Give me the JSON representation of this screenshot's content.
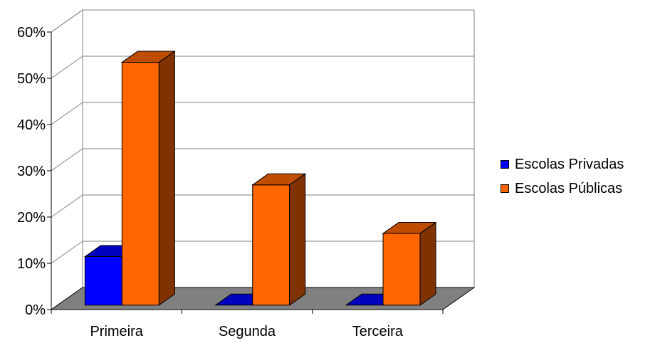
{
  "chart_data": {
    "type": "bar",
    "categories": [
      "Primeira",
      "Segunda",
      "Terceira"
    ],
    "series": [
      {
        "name": "Escolas Privadas",
        "values": [
          10.5,
          0,
          0
        ],
        "color": "#0000ff"
      },
      {
        "name": "Escolas Públicas",
        "values": [
          52.5,
          26,
          15.5
        ],
        "color": "#ff6600"
      }
    ],
    "y_ticks": [
      "0%",
      "10%",
      "20%",
      "30%",
      "40%",
      "50%",
      "60%"
    ],
    "ylim": [
      0,
      60
    ],
    "grid": true,
    "legend_position": "right",
    "three_d": true
  }
}
